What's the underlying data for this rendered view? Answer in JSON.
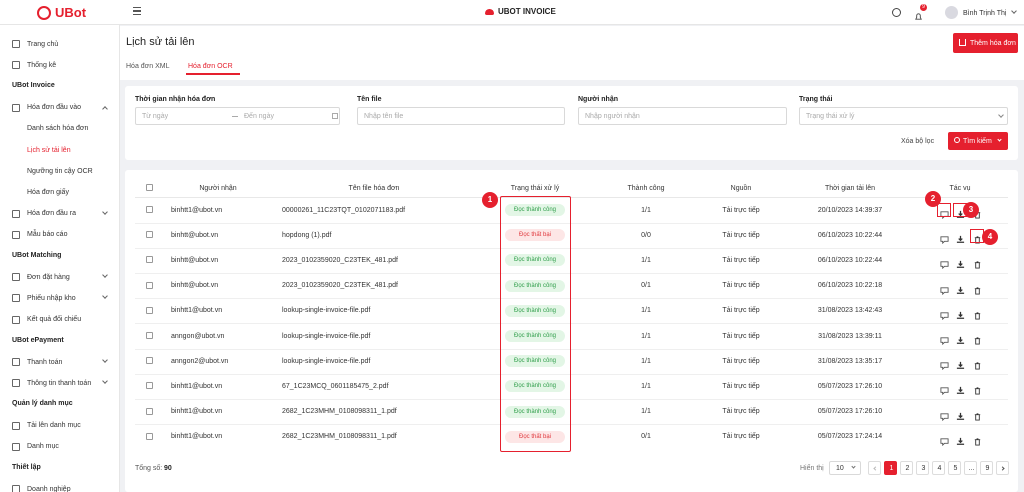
{
  "header": {
    "logo": "UBot",
    "app_title": "UBOT INVOICE",
    "notification_count": 9,
    "user_name": "Bình Trịnh Thị"
  },
  "sidebar": [
    {
      "items": [
        {
          "label": "Trang chủ"
        },
        {
          "label": "Thống kê"
        }
      ]
    },
    {
      "title": "UBot Invoice",
      "items": [
        {
          "label": "Hóa đơn đầu vào",
          "children": [
            "Danh sách hóa đơn",
            "Lịch sử tải lên",
            "Ngưỡng tin cậy OCR",
            "Hóa đơn giấy"
          ]
        },
        {
          "label": "Hóa đơn đầu ra"
        },
        {
          "label": "Mẫu báo cáo"
        }
      ]
    },
    {
      "title": "UBot Matching",
      "items": [
        {
          "label": "Đơn đặt hàng"
        },
        {
          "label": "Phiếu nhập kho"
        },
        {
          "label": "Kết quả đối chiếu"
        }
      ]
    },
    {
      "title": "UBot ePayment",
      "items": [
        {
          "label": "Thanh toán"
        },
        {
          "label": "Thông tin thanh toán"
        }
      ]
    },
    {
      "title": "Quản lý danh mục",
      "items": [
        {
          "label": "Tải lên danh mục"
        },
        {
          "label": "Danh mục"
        }
      ]
    },
    {
      "title": "Thiết lập",
      "items": [
        {
          "label": "Doanh nghiệp"
        }
      ]
    }
  ],
  "active_item": "Lịch sử tải lên",
  "page": {
    "title": "Lịch sử tải lên",
    "add_button": "Thêm hóa đơn",
    "tabs": [
      "Hóa đơn XML",
      "Hóa đơn OCR"
    ],
    "active_tab": 1
  },
  "filters": {
    "date": {
      "label": "Thời gian nhận hóa đơn",
      "from": "Từ ngày",
      "to": "Đến ngày"
    },
    "file": {
      "label": "Tên file",
      "placeholder": "Nhập tên file"
    },
    "recipient": {
      "label": "Người nhận",
      "placeholder": "Nhập người nhận"
    },
    "status": {
      "label": "Trạng thái",
      "placeholder": "Trạng thái xử lý"
    },
    "clear": "Xóa bộ lọc",
    "search": "Tìm kiếm"
  },
  "table": {
    "columns": [
      "Người nhận",
      "Tên file hóa đơn",
      "Trạng thái xử lý",
      "Thành công",
      "Nguồn",
      "Thời gian tải lên",
      "Tác vụ"
    ],
    "rows": [
      {
        "recipient": "binhtt1@ubot.vn",
        "file": "00000261_11C23TQT_0102071183.pdf",
        "status": {
          "text": "Đọc thành công",
          "tone": "success"
        },
        "success": "1/1",
        "source": "Tải trực tiếp",
        "time": "20/10/2023 14:39:37"
      },
      {
        "recipient": "binhtt@ubot.vn",
        "file": "hopdong (1).pdf",
        "status": {
          "text": "Đọc thất bại",
          "tone": "fail"
        },
        "success": "0/0",
        "source": "Tải trực tiếp",
        "time": "06/10/2023 10:22:44"
      },
      {
        "recipient": "binhtt@ubot.vn",
        "file": "2023_0102359020_C23TEK_481.pdf",
        "status": {
          "text": "Đọc thành công",
          "tone": "success"
        },
        "success": "1/1",
        "source": "Tải trực tiếp",
        "time": "06/10/2023 10:22:44"
      },
      {
        "recipient": "binhtt@ubot.vn",
        "file": "2023_0102359020_C23TEK_481.pdf",
        "status": {
          "text": "Đọc thành công",
          "tone": "success"
        },
        "success": "0/1",
        "source": "Tải trực tiếp",
        "time": "06/10/2023 10:22:18"
      },
      {
        "recipient": "binhtt1@ubot.vn",
        "file": "lookup-single-invoice-file.pdf",
        "status": {
          "text": "Đọc thành công",
          "tone": "success"
        },
        "success": "1/1",
        "source": "Tải trực tiếp",
        "time": "31/08/2023 13:42:43"
      },
      {
        "recipient": "anngon@ubot.vn",
        "file": "lookup-single-invoice-file.pdf",
        "status": {
          "text": "Đọc thành công",
          "tone": "success"
        },
        "success": "1/1",
        "source": "Tải trực tiếp",
        "time": "31/08/2023 13:39:11"
      },
      {
        "recipient": "anngon2@ubot.vn",
        "file": "lookup-single-invoice-file.pdf",
        "status": {
          "text": "Đọc thành công",
          "tone": "success"
        },
        "success": "1/1",
        "source": "Tải trực tiếp",
        "time": "31/08/2023 13:35:17"
      },
      {
        "recipient": "binhtt1@ubot.vn",
        "file": "67_1C23MCQ_0601185475_2.pdf",
        "status": {
          "text": "Đọc thành công",
          "tone": "success"
        },
        "success": "1/1",
        "source": "Tải trực tiếp",
        "time": "05/07/2023 17:26:10"
      },
      {
        "recipient": "binhtt1@ubot.vn",
        "file": "2682_1C23MHM_0108098311_1.pdf",
        "status": {
          "text": "Đọc thành công",
          "tone": "success"
        },
        "success": "1/1",
        "source": "Tải trực tiếp",
        "time": "05/07/2023 17:26:10"
      },
      {
        "recipient": "binhtt1@ubot.vn",
        "file": "2682_1C23MHM_0108098311_1.pdf",
        "status": {
          "text": "Đọc thất bại",
          "tone": "fail"
        },
        "success": "0/1",
        "source": "Tải trực tiếp",
        "time": "05/07/2023 17:24:14"
      }
    ]
  },
  "footer": {
    "total_label": "Tổng số:",
    "total": 90,
    "show_label": "Hiển thị",
    "page_size": 10,
    "pages": [
      1,
      2,
      3,
      4,
      5,
      "...",
      9
    ],
    "current_page": 1
  },
  "annotations": [
    1,
    2,
    3,
    4
  ]
}
